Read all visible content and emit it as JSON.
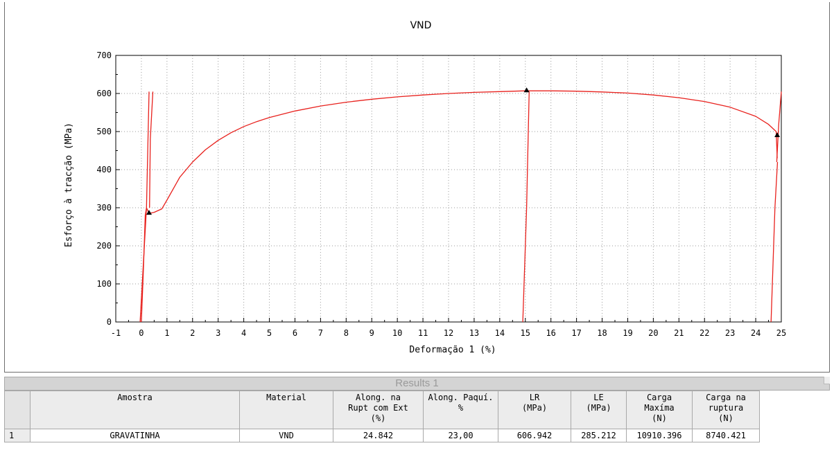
{
  "chart_data": {
    "type": "line",
    "title": "VND",
    "xlabel": "Deformação 1 (%)",
    "ylabel": "Esforço à tracção (MPa)",
    "xlim": [
      -1,
      25
    ],
    "ylim": [
      0,
      700
    ],
    "xticks": [
      "-1",
      "0",
      "1",
      "2",
      "3",
      "4",
      "5",
      "6",
      "7",
      "8",
      "9",
      "10",
      "11",
      "12",
      "13",
      "14",
      "15",
      "16",
      "17",
      "18",
      "19",
      "20",
      "21",
      "22",
      "23",
      "24",
      "25"
    ],
    "yticks": [
      "0",
      "100",
      "200",
      "300",
      "400",
      "500",
      "600",
      "700"
    ],
    "grid": true,
    "line_color": "#e8201c",
    "series": [
      {
        "values": [
          [
            0.0,
            0
          ],
          [
            0.08,
            140
          ],
          [
            0.15,
            280
          ],
          [
            0.2,
            300
          ],
          [
            0.3,
            285
          ],
          [
            0.5,
            288
          ],
          [
            0.8,
            297
          ],
          [
            1.0,
            320
          ],
          [
            1.5,
            380
          ],
          [
            2.0,
            420
          ],
          [
            2.5,
            452
          ],
          [
            3.0,
            477
          ],
          [
            3.5,
            497
          ],
          [
            4.0,
            513
          ],
          [
            4.5,
            526
          ],
          [
            5.0,
            537
          ],
          [
            6.0,
            554
          ],
          [
            7.0,
            567
          ],
          [
            8.0,
            577
          ],
          [
            9.0,
            585
          ],
          [
            10.0,
            591
          ],
          [
            11.0,
            596
          ],
          [
            12.0,
            600
          ],
          [
            13.0,
            603
          ],
          [
            14.0,
            605
          ],
          [
            15.0,
            606.9
          ],
          [
            16.0,
            607
          ],
          [
            17.0,
            606
          ],
          [
            18.0,
            604
          ],
          [
            19.0,
            601
          ],
          [
            20.0,
            596
          ],
          [
            21.0,
            589
          ],
          [
            22.0,
            579
          ],
          [
            23.0,
            564
          ],
          [
            24.0,
            540
          ],
          [
            24.5,
            519
          ],
          [
            24.8,
            500
          ],
          [
            24.84,
            430
          ]
        ]
      },
      {
        "values": [
          [
            -0.05,
            0
          ],
          [
            0.2,
            300
          ],
          [
            0.3,
            605
          ]
        ]
      },
      {
        "values": [
          [
            0.32,
            300
          ],
          [
            0.35,
            480
          ],
          [
            0.45,
            605
          ]
        ]
      },
      {
        "values": [
          [
            14.9,
            0
          ],
          [
            15.05,
            300
          ],
          [
            15.15,
            605
          ]
        ]
      },
      {
        "values": [
          [
            24.6,
            0
          ],
          [
            24.75,
            300
          ],
          [
            24.85,
            420
          ]
        ]
      },
      {
        "values": [
          [
            24.82,
            420
          ],
          [
            24.9,
            520
          ],
          [
            25.0,
            605
          ]
        ]
      }
    ],
    "markers": [
      {
        "x": 0.3,
        "y": 285.2
      },
      {
        "x": 15.05,
        "y": 606.9
      },
      {
        "x": 24.84,
        "y": 489
      }
    ]
  },
  "results": {
    "title": "Results 1",
    "headers": [
      "",
      "Amostra",
      "Material",
      "Along. na\nRupt com Ext\n(%)",
      "Along. Paquí.\n%",
      "LR\n(MPa)",
      "LE\n(MPa)",
      "Carga\nMaxíma\n(N)",
      "Carga na\nruptura\n(N)"
    ],
    "rows": [
      [
        "1",
        "GRAVATINHA",
        "VND",
        "24.842",
        "23,00",
        "606.942",
        "285.212",
        "10910.396",
        "8740.421"
      ]
    ]
  }
}
